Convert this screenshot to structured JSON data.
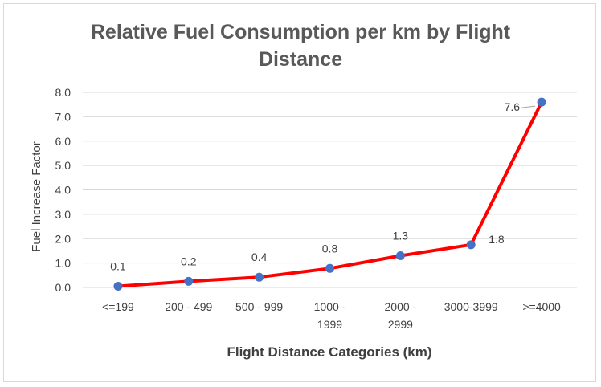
{
  "chart_data": {
    "type": "line",
    "title_lines": [
      "Relative Fuel Consumption per km by Flight",
      "Distance"
    ],
    "xlabel": "Flight Distance Categories (km)",
    "ylabel": "Fuel Increase Factor",
    "categories": [
      [
        "<=199"
      ],
      [
        "200 - 499"
      ],
      [
        "500 - 999"
      ],
      [
        "1000 -",
        "1999"
      ],
      [
        "2000 -",
        "2999"
      ],
      [
        "3000-3999"
      ],
      [
        ">=4000"
      ]
    ],
    "values": [
      0.05,
      0.25,
      0.42,
      0.78,
      1.3,
      1.75,
      7.6
    ],
    "data_labels": [
      "0.1",
      "0.2",
      "0.4",
      "0.8",
      "1.3",
      "1.8",
      "7.6"
    ],
    "ylim": [
      0,
      8
    ],
    "yticks": [
      "0.0",
      "1.0",
      "2.0",
      "3.0",
      "4.0",
      "5.0",
      "6.0",
      "7.0",
      "8.0"
    ],
    "grid": true,
    "line_color": "#ff0000",
    "marker_color": "#4472c4"
  }
}
